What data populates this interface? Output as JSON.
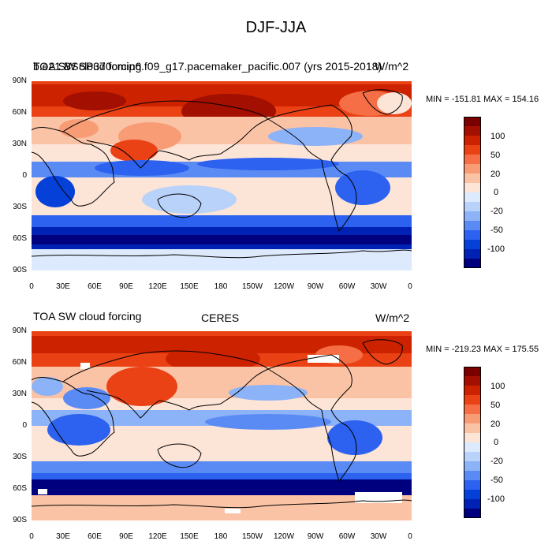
{
  "title": "DJF-JJA",
  "colorbar": {
    "colors": [
      "#00007f",
      "#0022b4",
      "#0540d9",
      "#2c62ef",
      "#5a8bf5",
      "#8cb2f7",
      "#b9d2fa",
      "#dde9fc",
      "#fce4d7",
      "#fbc3a6",
      "#f89c76",
      "#f56e45",
      "#ea4215",
      "#cc2200",
      "#a30f00",
      "#7a0000"
    ],
    "labels": [
      "100",
      "50",
      "20",
      "0",
      "-20",
      "-50",
      "-100"
    ]
  },
  "axes": {
    "y_labels": [
      "90N",
      "60N",
      "30N",
      "0",
      "30S",
      "60S",
      "90S"
    ],
    "x_labels": [
      "0",
      "30E",
      "60E",
      "90E",
      "120E",
      "150E",
      "180",
      "150W",
      "120W",
      "90W",
      "60W",
      "30W",
      "0"
    ]
  },
  "panels": [
    {
      "left_text": "TOA SW cloud forcing",
      "center_text": "b.e21.BSSP370cmip6.f09_g17.pacemaker_pacific.007 (yrs 2015-2018)",
      "right_text": "W/m^2",
      "min_text": "MIN = -151.81",
      "max_text": "MAX = 154.16"
    },
    {
      "left_text": "TOA SW cloud forcing",
      "center_text": "CERES",
      "right_text": "W/m^2",
      "min_text": "MIN = -219.23",
      "max_text": "MAX = 175.55"
    }
  ]
}
